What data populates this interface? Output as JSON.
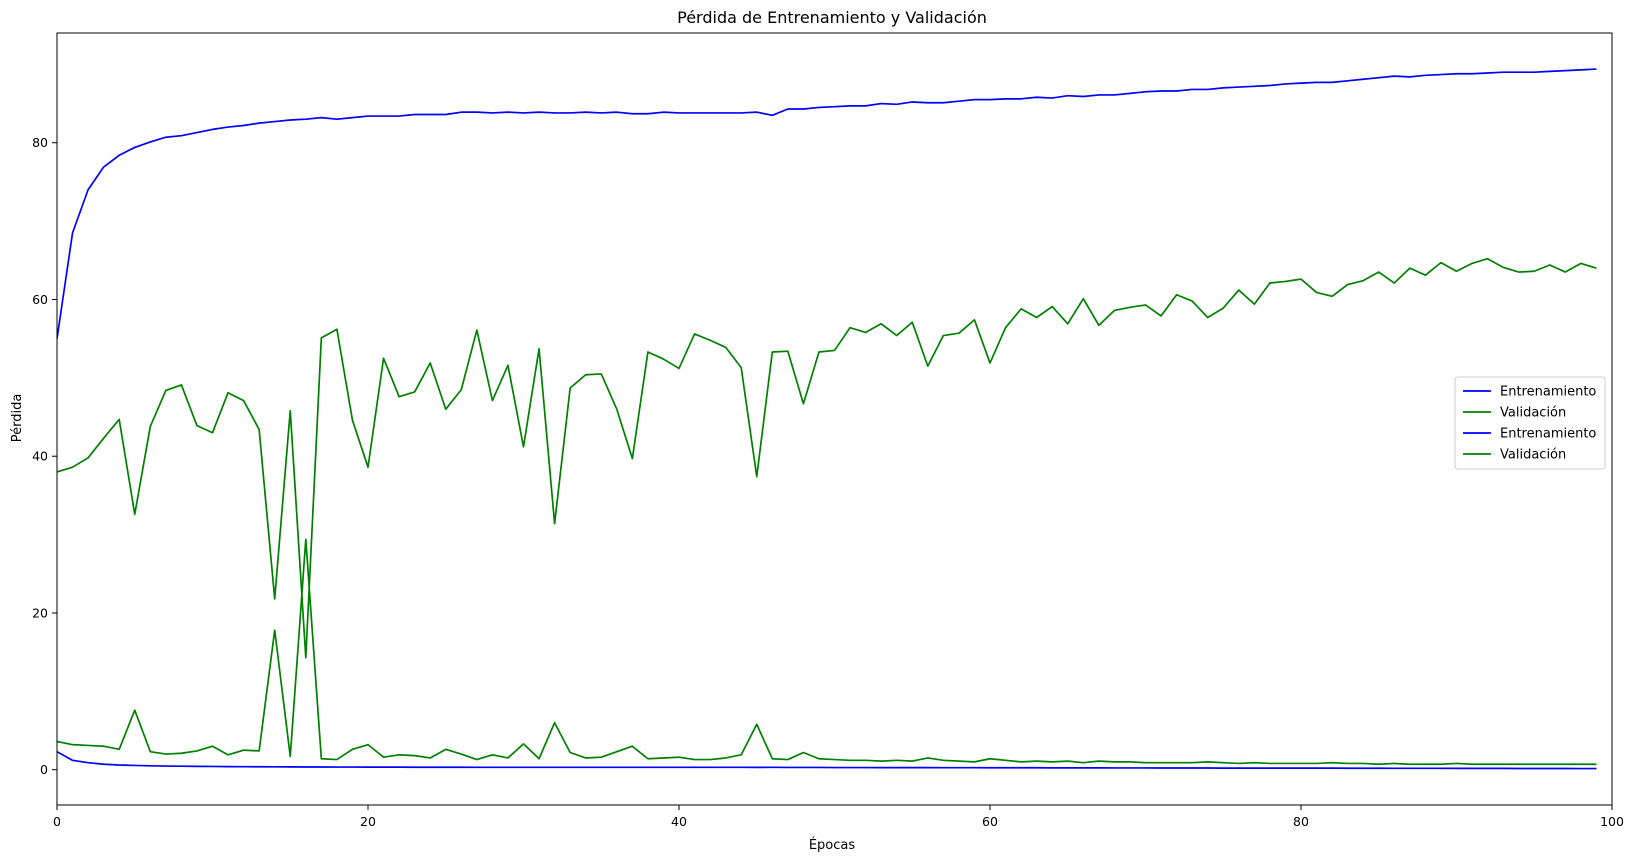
{
  "chart_data": {
    "type": "line",
    "title": "Pérdida de Entrenamiento y Validación",
    "xlabel": "Épocas",
    "ylabel": "Pérdida",
    "xlim": [
      0,
      100
    ],
    "ylim": [
      -4.5,
      94
    ],
    "xticks": [
      0,
      20,
      40,
      60,
      80,
      100
    ],
    "yticks": [
      0,
      20,
      40,
      60,
      80
    ],
    "grid": false,
    "legend_position": "center-right",
    "colors": {
      "Entrenamiento": "#0000ff",
      "Validación": "#008000"
    },
    "series": [
      {
        "name": "Entrenamiento",
        "color": "#0000ff",
        "values": [
          55.0,
          68.5,
          74.0,
          76.9,
          78.4,
          79.4,
          80.1,
          80.7,
          80.9,
          81.3,
          81.7,
          82.0,
          82.2,
          82.5,
          82.7,
          82.9,
          83.0,
          83.2,
          83.0,
          83.2,
          83.4,
          83.4,
          83.4,
          83.6,
          83.6,
          83.6,
          83.9,
          83.9,
          83.8,
          83.9,
          83.8,
          83.9,
          83.8,
          83.8,
          83.9,
          83.8,
          83.9,
          83.7,
          83.7,
          83.9,
          83.8,
          83.8,
          83.8,
          83.8,
          83.8,
          83.9,
          83.5,
          84.3,
          84.3,
          84.5,
          84.6,
          84.7,
          84.7,
          85.0,
          84.9,
          85.2,
          85.1,
          85.1,
          85.3,
          85.5,
          85.5,
          85.6,
          85.6,
          85.8,
          85.7,
          86.0,
          85.9,
          86.1,
          86.1,
          86.3,
          86.5,
          86.6,
          86.6,
          86.8,
          86.8,
          87.0,
          87.1,
          87.2,
          87.3,
          87.5,
          87.6,
          87.7,
          87.7,
          87.9,
          88.1,
          88.3,
          88.5,
          88.4,
          88.6,
          88.7,
          88.8,
          88.8,
          88.9,
          89.0,
          89.0,
          89.0,
          89.1,
          89.2,
          89.3,
          89.4
        ]
      },
      {
        "name": "Validación",
        "color": "#008000",
        "values": [
          38.0,
          38.6,
          39.8,
          42.3,
          44.7,
          32.6,
          43.8,
          48.4,
          49.1,
          43.9,
          43.0,
          48.1,
          47.1,
          43.4,
          21.8,
          45.8,
          14.3,
          55.1,
          56.2,
          44.6,
          38.6,
          52.5,
          47.6,
          48.2,
          51.9,
          46.0,
          48.5,
          56.1,
          47.1,
          51.6,
          41.2,
          53.7,
          31.4,
          48.7,
          50.4,
          50.5,
          46.0,
          39.7,
          53.3,
          52.4,
          51.2,
          55.6,
          54.8,
          53.9,
          51.3,
          37.4,
          53.3,
          53.4,
          46.7,
          53.3,
          53.5,
          56.4,
          55.8,
          56.9,
          55.4,
          57.1,
          51.5,
          55.4,
          55.7,
          57.4,
          51.9,
          56.4,
          58.8,
          57.7,
          59.1,
          56.9,
          60.1,
          56.7,
          58.6,
          59.0,
          59.3,
          57.9,
          60.6,
          59.8,
          57.7,
          58.9,
          61.2,
          59.4,
          62.1,
          62.3,
          62.6,
          60.9,
          60.4,
          61.9,
          62.4,
          63.5,
          62.1,
          64.0,
          63.1,
          64.7,
          63.6,
          64.6,
          65.2,
          64.1,
          63.5,
          63.6,
          64.4,
          63.5,
          64.6,
          64.0
        ]
      },
      {
        "name": "Entrenamiento",
        "color": "#0000ff",
        "values": [
          2.3,
          1.2,
          0.9,
          0.7,
          0.6,
          0.55,
          0.5,
          0.47,
          0.45,
          0.43,
          0.42,
          0.4,
          0.39,
          0.38,
          0.37,
          0.36,
          0.35,
          0.35,
          0.34,
          0.34,
          0.33,
          0.33,
          0.33,
          0.32,
          0.32,
          0.32,
          0.32,
          0.31,
          0.31,
          0.31,
          0.31,
          0.31,
          0.31,
          0.31,
          0.31,
          0.31,
          0.31,
          0.31,
          0.31,
          0.31,
          0.31,
          0.31,
          0.31,
          0.31,
          0.31,
          0.3,
          0.31,
          0.29,
          0.29,
          0.29,
          0.28,
          0.28,
          0.28,
          0.27,
          0.27,
          0.27,
          0.27,
          0.26,
          0.26,
          0.26,
          0.25,
          0.25,
          0.25,
          0.25,
          0.24,
          0.24,
          0.24,
          0.24,
          0.23,
          0.23,
          0.23,
          0.22,
          0.22,
          0.22,
          0.22,
          0.21,
          0.21,
          0.21,
          0.21,
          0.2,
          0.2,
          0.2,
          0.2,
          0.19,
          0.19,
          0.19,
          0.18,
          0.18,
          0.18,
          0.18,
          0.17,
          0.17,
          0.17,
          0.17,
          0.16,
          0.16,
          0.16,
          0.16,
          0.15,
          0.15
        ]
      },
      {
        "name": "Validación",
        "color": "#008000",
        "values": [
          3.6,
          3.2,
          3.1,
          3.0,
          2.6,
          7.6,
          2.3,
          2.0,
          2.1,
          2.4,
          3.0,
          1.9,
          2.5,
          2.4,
          17.8,
          1.7,
          29.4,
          1.4,
          1.3,
          2.6,
          3.2,
          1.6,
          1.9,
          1.8,
          1.5,
          2.6,
          2.0,
          1.3,
          1.9,
          1.5,
          3.3,
          1.4,
          6.0,
          2.2,
          1.5,
          1.6,
          2.3,
          3.0,
          1.4,
          1.5,
          1.6,
          1.3,
          1.3,
          1.5,
          1.9,
          5.8,
          1.4,
          1.3,
          2.2,
          1.4,
          1.3,
          1.2,
          1.2,
          1.1,
          1.2,
          1.1,
          1.5,
          1.2,
          1.1,
          1.0,
          1.4,
          1.2,
          1.0,
          1.1,
          1.0,
          1.1,
          0.9,
          1.1,
          1.0,
          1.0,
          0.9,
          0.9,
          0.9,
          0.9,
          1.0,
          0.9,
          0.8,
          0.9,
          0.8,
          0.8,
          0.8,
          0.8,
          0.9,
          0.8,
          0.8,
          0.7,
          0.8,
          0.7,
          0.7,
          0.7,
          0.8,
          0.7,
          0.7,
          0.7,
          0.7,
          0.7,
          0.7,
          0.7,
          0.7,
          0.7
        ]
      }
    ]
  }
}
